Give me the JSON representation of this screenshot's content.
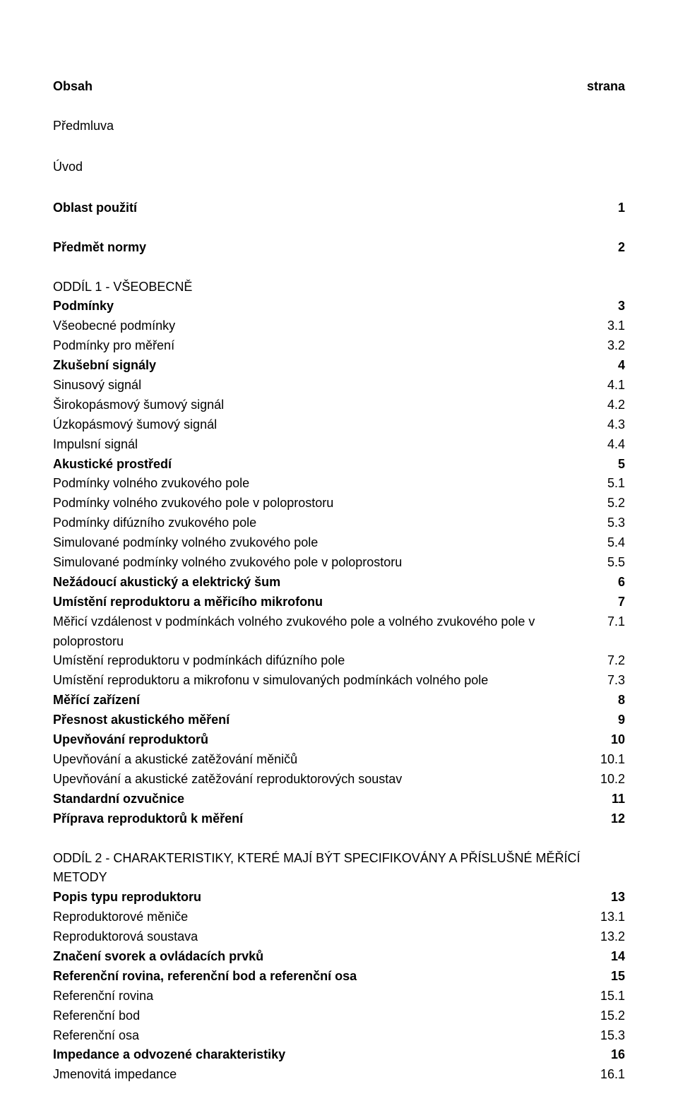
{
  "header": {
    "left": "Obsah",
    "right": "strana"
  },
  "intro": [
    "Předmluva",
    "Úvod"
  ],
  "sections": [
    {
      "rows": [
        {
          "label": "Oblast použití",
          "num": "1",
          "bold": true,
          "gap_after": true
        },
        {
          "label": "Předmět normy",
          "num": "2",
          "bold": true,
          "gap_after": true
        }
      ]
    },
    {
      "title": "ODDÍL 1 - VŠEOBECNĚ",
      "rows": [
        {
          "label": "Podmínky",
          "num": "3",
          "bold": true
        },
        {
          "label": "Všeobecné podmínky",
          "num": "3.1"
        },
        {
          "label": "Podmínky pro měření",
          "num": "3.2"
        },
        {
          "label": "Zkušební signály",
          "num": "4",
          "bold": true
        },
        {
          "label": "Sinusový signál",
          "num": "4.1"
        },
        {
          "label": "Širokopásmový šumový signál",
          "num": "4.2"
        },
        {
          "label": "Úzkopásmový šumový signál",
          "num": "4.3"
        },
        {
          "label": "Impulsní signál",
          "num": "4.4"
        },
        {
          "label": "Akustické prostředí",
          "num": "5",
          "bold": true
        },
        {
          "label": "Podmínky volného zvukového pole",
          "num": "5.1"
        },
        {
          "label": "Podmínky volného zvukového pole v poloprostoru",
          "num": "5.2"
        },
        {
          "label": "Podmínky difúzního zvukového pole",
          "num": "5.3"
        },
        {
          "label": "Simulované podmínky volného zvukového pole",
          "num": "5.4"
        },
        {
          "label": "Simulované podmínky volného zvukového pole v poloprostoru",
          "num": "5.5"
        },
        {
          "label": "Nežádoucí akustický a elektrický šum",
          "num": "6",
          "bold": true
        },
        {
          "label": "Umístění reproduktoru a měřicího mikrofonu",
          "num": "7",
          "bold": true
        },
        {
          "label": "Měřicí vzdálenost v podmínkách volného zvukového pole a volného zvukového pole v poloprostoru",
          "num": "7.1"
        },
        {
          "label": "Umístění reproduktoru v podmínkách difúzního pole",
          "num": "7.2"
        },
        {
          "label": "Umístění reproduktoru a mikrofonu v simulovaných podmínkách volného pole",
          "num": "7.3"
        },
        {
          "label": "Měřící zařízení",
          "num": "8",
          "bold": true
        },
        {
          "label": "Přesnost akustického měření",
          "num": "9",
          "bold": true
        },
        {
          "label": "Upevňování reproduktorů",
          "num": "10",
          "bold": true
        },
        {
          "label": "Upevňování a akustické zatěžování měničů",
          "num": "10.1"
        },
        {
          "label": "Upevňování a akustické zatěžování reproduktorových soustav",
          "num": "10.2"
        },
        {
          "label": "Standardní ozvučnice",
          "num": "11",
          "bold": true
        },
        {
          "label": "Příprava reproduktorů k měření",
          "num": "12",
          "bold": true,
          "gap_after": true
        }
      ]
    },
    {
      "title": "ODDÍL 2 - CHARAKTERISTIKY, KTERÉ MAJÍ BÝT SPECIFIKOVÁNY A PŘÍSLUŠNÉ MĚŘÍCÍ METODY",
      "rows": [
        {
          "label": "Popis typu reproduktoru",
          "num": "13",
          "bold": true
        },
        {
          "label": "Reproduktorové měniče",
          "num": "13.1"
        },
        {
          "label": "Reproduktorová soustava",
          "num": "13.2"
        },
        {
          "label": "Značení svorek a ovládacích prvků",
          "num": "14",
          "bold": true
        },
        {
          "label": "Referenční rovina, referenční bod a referenční osa",
          "num": "15",
          "bold": true
        },
        {
          "label": "Referenční rovina",
          "num": "15.1"
        },
        {
          "label": "Referenční bod",
          "num": "15.2"
        },
        {
          "label": "Referenční osa",
          "num": "15.3"
        },
        {
          "label": "Impedance a odvozené charakteristiky",
          "num": "16",
          "bold": true
        },
        {
          "label": "Jmenovitá impedance",
          "num": "16.1"
        }
      ]
    }
  ]
}
